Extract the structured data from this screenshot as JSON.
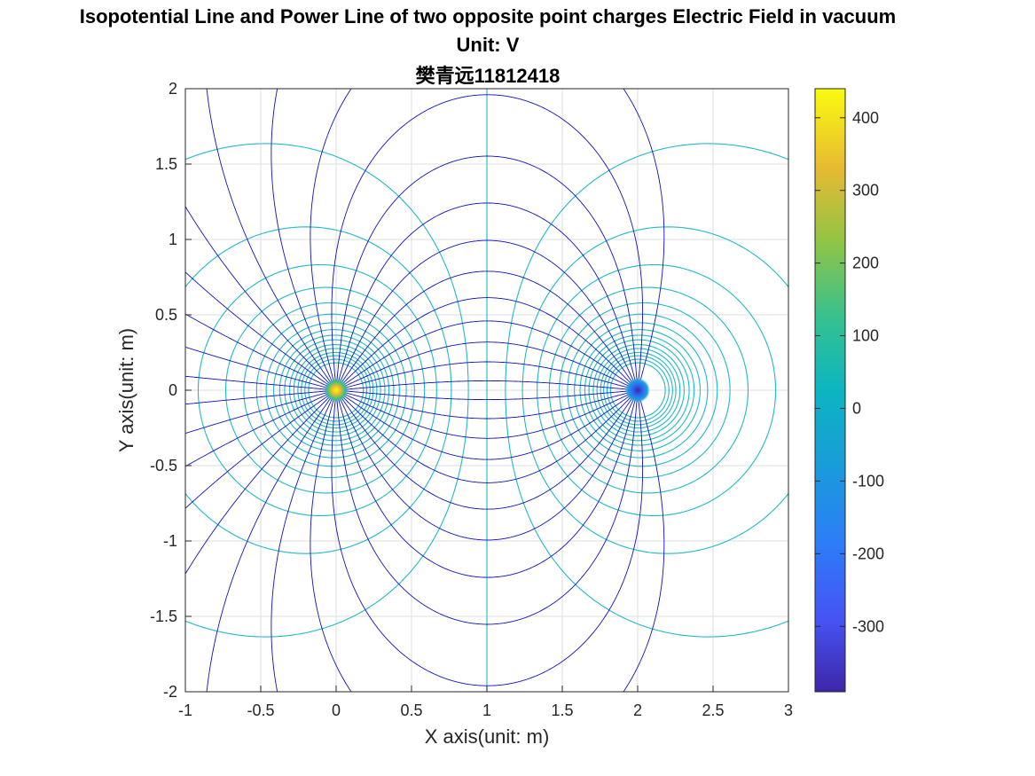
{
  "chart_data": {
    "type": "contour",
    "title_lines": [
      "Isopotential Line and Power Line of two opposite point charges Electric Field in vacuum",
      "Unit: V",
      "樊青远11812418"
    ],
    "xlabel": "X axis(unit: m)",
    "ylabel": "Y axis(unit: m)",
    "xlim": [
      -1,
      3
    ],
    "ylim": [
      -2,
      2
    ],
    "xticks": [
      "-1",
      "-0.5",
      "0",
      "0.5",
      "1",
      "1.5",
      "2",
      "2.5",
      "3"
    ],
    "yticks": [
      "2",
      "1.5",
      "1",
      "0.5",
      "0",
      "-0.5",
      "-1",
      "-1.5",
      "-2"
    ],
    "grid": true,
    "charges": [
      {
        "x": 0,
        "y": 0,
        "sign": "positive"
      },
      {
        "x": 2,
        "y": 0,
        "sign": "negative"
      }
    ],
    "colorbar": {
      "range": [
        -390,
        440
      ],
      "ticks": [
        "400",
        "300",
        "200",
        "100",
        "0",
        "-100",
        "-200",
        "-300"
      ],
      "colormap": "parula"
    },
    "colors": {
      "field_lines": "#1010c8",
      "isopotential_lines": "#1fb8c8",
      "grid": "#dddddd"
    }
  }
}
